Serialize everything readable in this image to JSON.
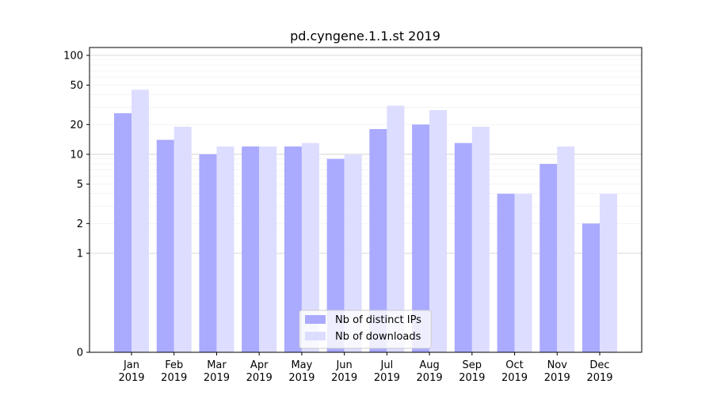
{
  "chart_data": {
    "type": "bar",
    "title": "pd.cyngene.1.1.st 2019",
    "xlabel": "",
    "ylabel": "",
    "yscale": "symlog",
    "ylim": [
      0,
      120
    ],
    "yticks": [
      0,
      1,
      2,
      5,
      10,
      20,
      50,
      100
    ],
    "ytick_labels": [
      "0",
      "1",
      "2",
      "5",
      "10",
      "20",
      "50",
      "100"
    ],
    "categories": [
      [
        "Jan",
        "2019"
      ],
      [
        "Feb",
        "2019"
      ],
      [
        "Mar",
        "2019"
      ],
      [
        "Apr",
        "2019"
      ],
      [
        "May",
        "2019"
      ],
      [
        "Jun",
        "2019"
      ],
      [
        "Jul",
        "2019"
      ],
      [
        "Aug",
        "2019"
      ],
      [
        "Sep",
        "2019"
      ],
      [
        "Oct",
        "2019"
      ],
      [
        "Nov",
        "2019"
      ],
      [
        "Dec",
        "2019"
      ]
    ],
    "series": [
      {
        "name": "Nb of distinct IPs",
        "color": "#aaaaff",
        "values": [
          26,
          14,
          10,
          12,
          12,
          9,
          18,
          20,
          13,
          4,
          8,
          2
        ]
      },
      {
        "name": "Nb of downloads",
        "color": "#ddddff",
        "values": [
          45,
          19,
          12,
          12,
          13,
          10,
          31,
          28,
          19,
          4,
          12,
          4
        ]
      }
    ],
    "grid": true,
    "legend_position": "bottom-center"
  }
}
